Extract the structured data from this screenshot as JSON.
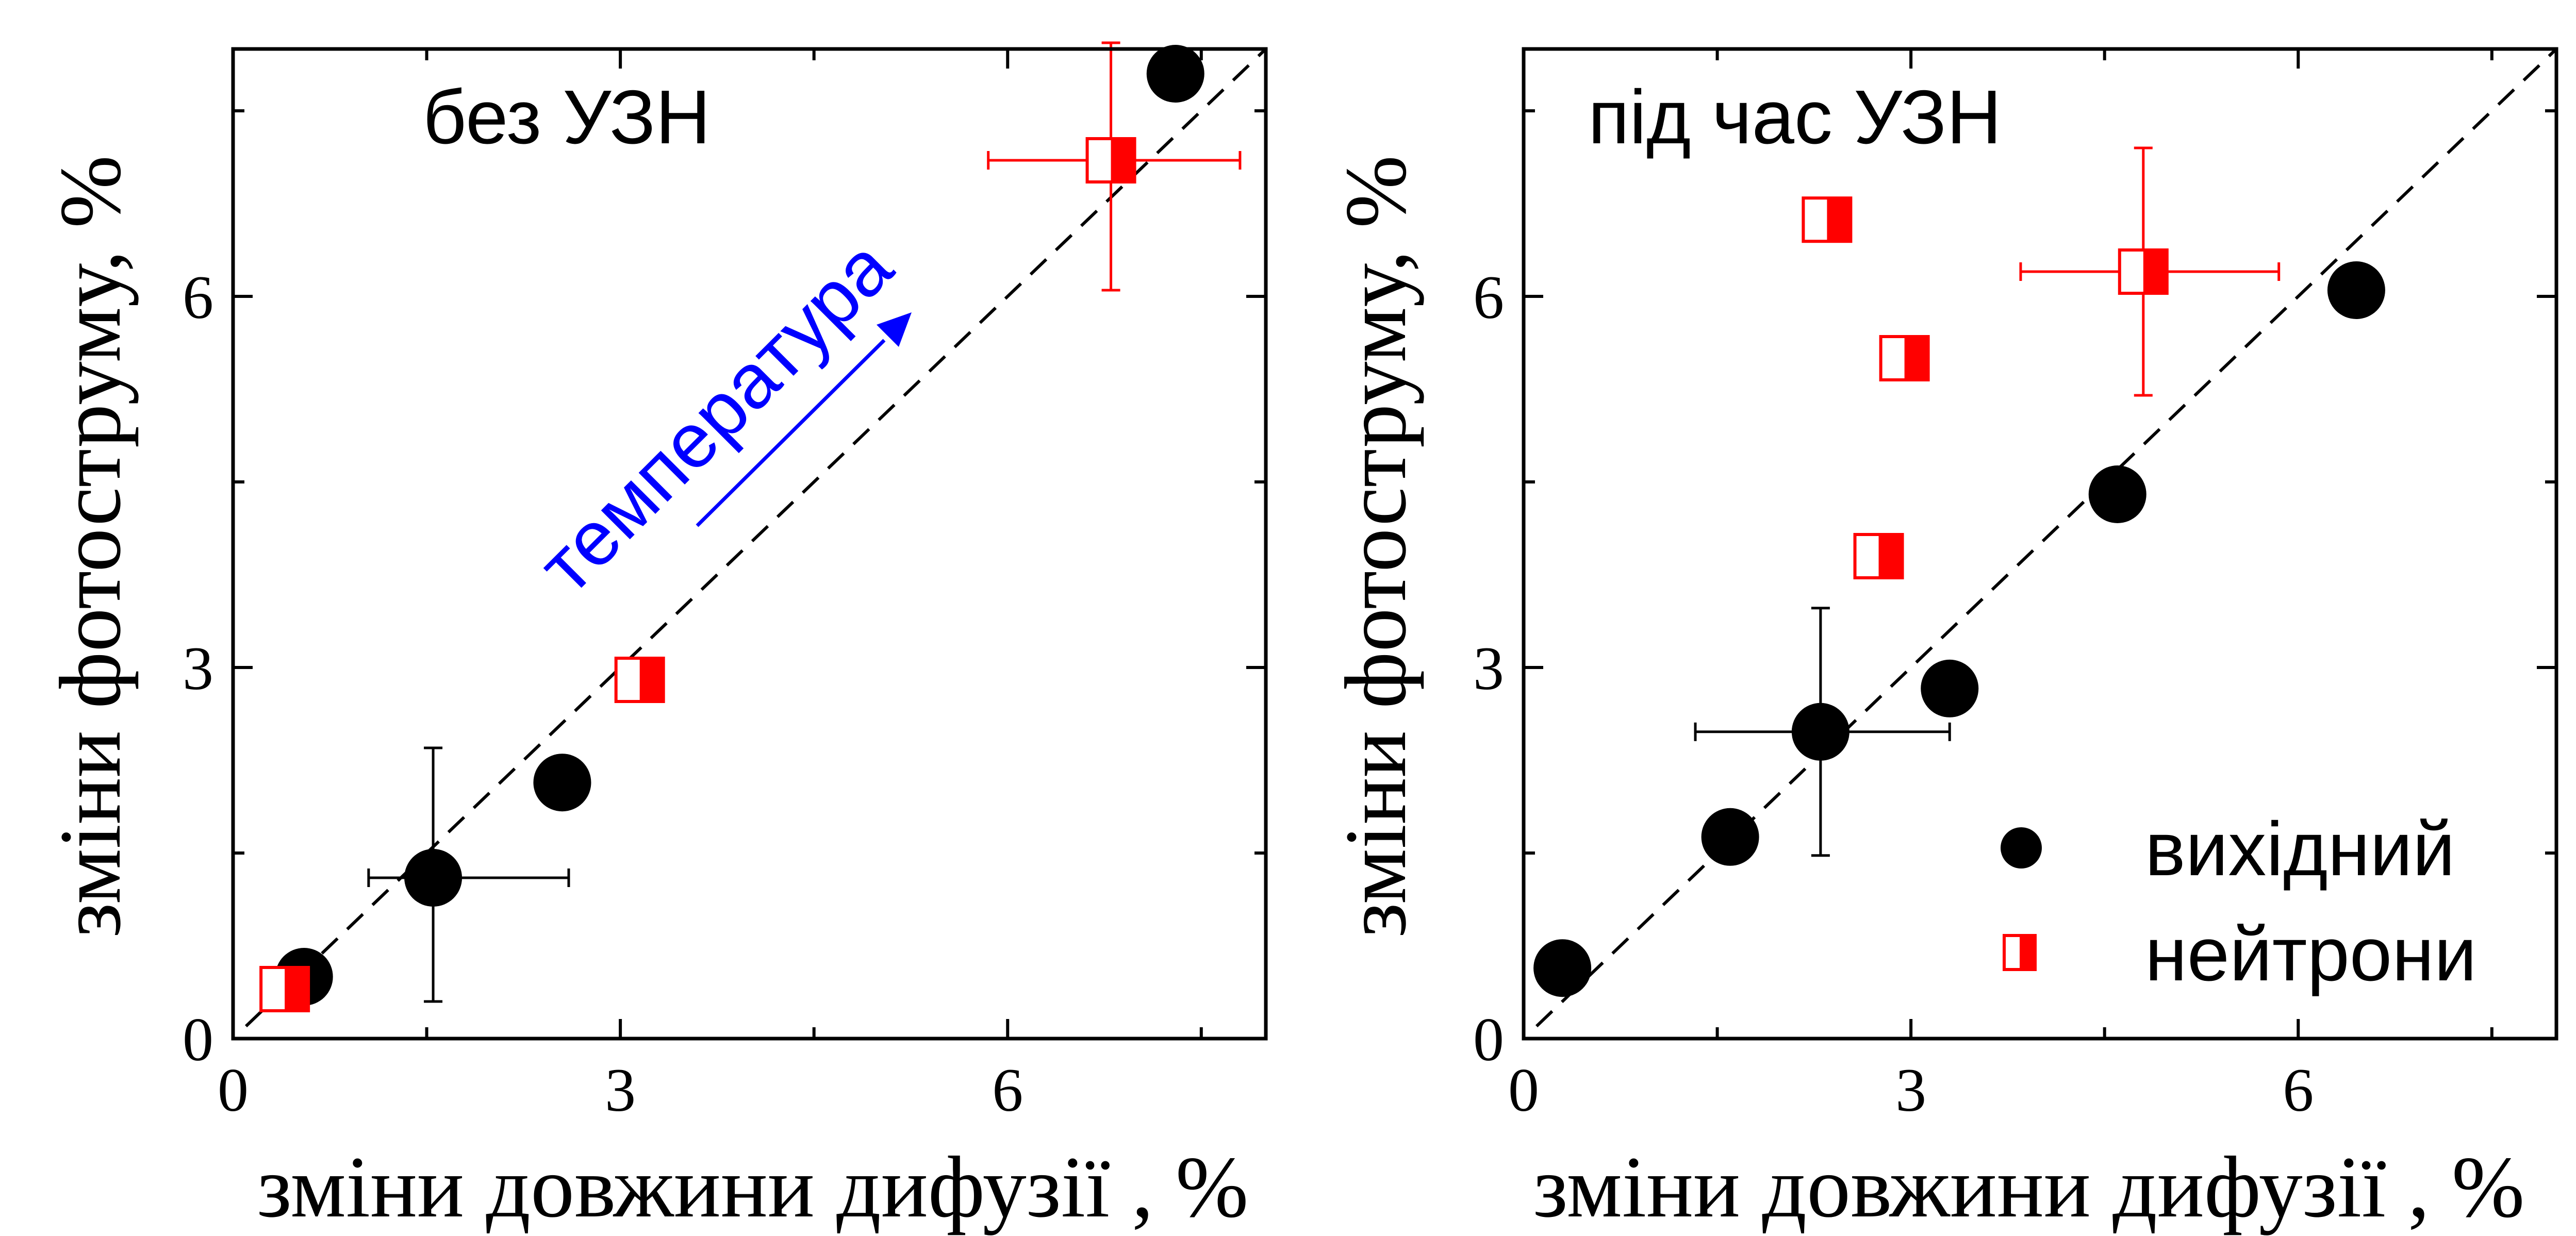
{
  "chart_data": [
    {
      "type": "scatter",
      "title": "без УЗН",
      "xlabel": "зміни довжини дифузії ,  %",
      "ylabel": "зміни фотоструму,  %",
      "xlim": [
        0,
        8
      ],
      "ylim": [
        0,
        8
      ],
      "xticks": [
        "0",
        "3",
        "6"
      ],
      "yticks": [
        "0",
        "3",
        "6"
      ],
      "grid": false,
      "reference_line": "y = x (dashed)",
      "annotation": {
        "text": "температура",
        "color": "#0000ff"
      },
      "series": [
        {
          "name": "вихідний",
          "color": "#000000",
          "marker": "filled-circle",
          "points": [
            {
              "x": 0.55,
              "y": 0.5
            },
            {
              "x": 1.55,
              "y": 1.3,
              "xerr": [
                0.5,
                1.05
              ],
              "yerr": [
                1.0,
                1.05
              ]
            },
            {
              "x": 2.55,
              "y": 2.07
            },
            {
              "x": 7.3,
              "y": 7.8
            }
          ]
        },
        {
          "name": "нейтрони",
          "color": "#ff0000",
          "marker": "half-filled-square",
          "points": [
            {
              "x": 0.4,
              "y": 0.4
            },
            {
              "x": 3.15,
              "y": 2.9
            },
            {
              "x": 6.8,
              "y": 7.1,
              "xerr": [
                0.95,
                1.0
              ],
              "yerr": [
                1.05,
                0.95
              ]
            }
          ]
        }
      ]
    },
    {
      "type": "scatter",
      "title": "під час УЗН",
      "xlabel": "зміни довжини дифузії ,  %",
      "ylabel": "зміни фотоструму,  %",
      "xlim": [
        0,
        8
      ],
      "ylim": [
        0,
        8
      ],
      "xticks": [
        "0",
        "3",
        "6"
      ],
      "yticks": [
        "0",
        "3",
        "6"
      ],
      "grid": false,
      "reference_line": "y = x (dashed)",
      "legend_position": "bottom-right",
      "series": [
        {
          "name": "вихідний",
          "color": "#000000",
          "marker": "filled-circle",
          "points": [
            {
              "x": 0.3,
              "y": 0.57
            },
            {
              "x": 1.6,
              "y": 1.63
            },
            {
              "x": 2.3,
              "y": 2.48,
              "xerr": [
                0.97,
                1.0
              ],
              "yerr": [
                1.0,
                1.0
              ]
            },
            {
              "x": 3.3,
              "y": 2.83
            },
            {
              "x": 4.6,
              "y": 4.4
            },
            {
              "x": 6.45,
              "y": 6.05
            }
          ]
        },
        {
          "name": "нейтрони",
          "color": "#ff0000",
          "marker": "half-filled-square",
          "points": [
            {
              "x": 2.35,
              "y": 6.62
            },
            {
              "x": 2.95,
              "y": 5.5
            },
            {
              "x": 2.75,
              "y": 3.9
            },
            {
              "x": 4.8,
              "y": 6.2,
              "xerr": [
                0.95,
                1.05
              ],
              "yerr": [
                1.0,
                1.0
              ]
            }
          ]
        }
      ]
    }
  ]
}
